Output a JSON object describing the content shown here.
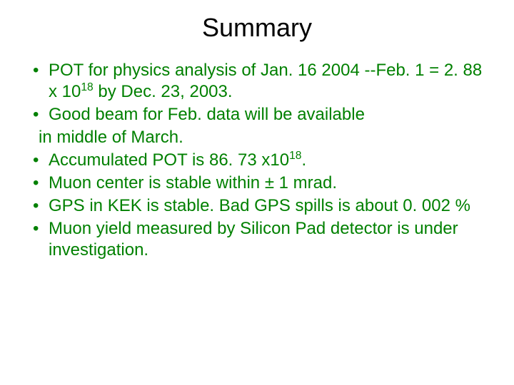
{
  "slide": {
    "title": "Summary",
    "title_color": "#000000",
    "title_fontsize": 36,
    "bullet_color": "#008000",
    "bullet_fontsize": 24,
    "background_color": "#ffffff",
    "bullets": [
      {
        "text_pre": "POT for physics analysis of Jan. 16 2004 --Feb. 1 = 2. 88 x 10",
        "exp": "18",
        "text_post": " by Dec. 23, 2003."
      },
      {
        "text_pre": "Good beam for Feb. data will be available",
        "cont": "in middle of March."
      },
      {
        "text_pre": "Accumulated POT is 86. 73 x10",
        "exp": "18",
        "text_post": "."
      },
      {
        "text_pre": "Muon center is stable within ± 1 mrad."
      },
      {
        "text_pre": "GPS in KEK is stable. Bad GPS spills is about 0. 002 %"
      },
      {
        "text_pre": "Muon yield measured by Silicon Pad detector is under investigation."
      }
    ]
  }
}
